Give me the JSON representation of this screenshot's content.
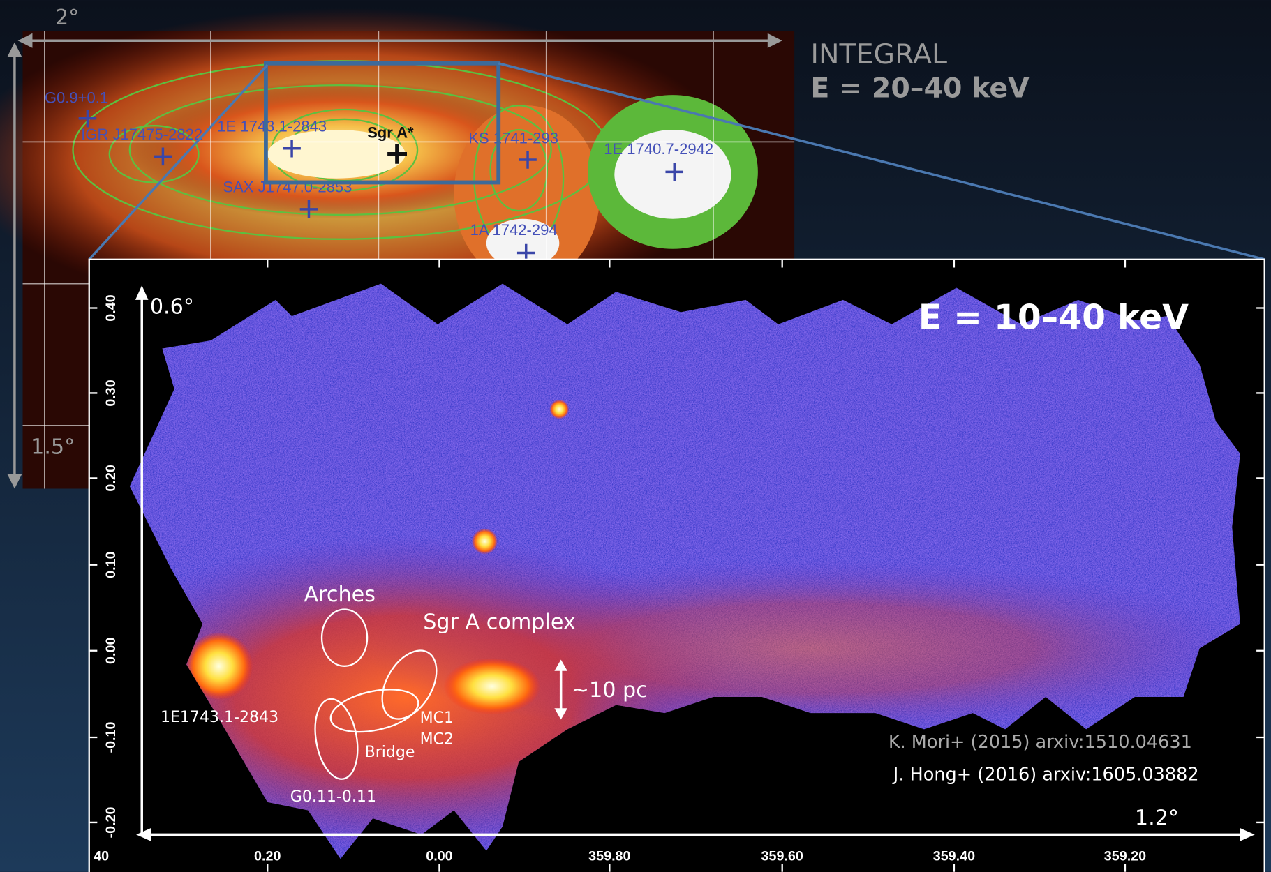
{
  "integral": {
    "scale_width": "2°",
    "scale_height": "1.5°",
    "instrument": "INTEGRAL",
    "energy": "E = 20–40 keV",
    "sources": [
      "G0.9+0.1",
      "IGR J17475-2822",
      "1E 1743.1-2843",
      "Sgr A*",
      "KS 1741-293",
      "1E 1740.7-2942",
      "SAX J1747.0-2853",
      "1A 1742-294"
    ]
  },
  "nustar": {
    "energy": "E = 10–40 keV",
    "scale_height": "0.6°",
    "scale_width": "1.2°",
    "yticks": [
      "0.40",
      "0.30",
      "0.20",
      "0.10",
      "0.00",
      "-0.10",
      "-0.20"
    ],
    "xticks": [
      "40",
      "0.20",
      "0.00",
      "359.80",
      "359.60",
      "359.40",
      "359.20"
    ],
    "labels": {
      "arches": "Arches",
      "sgr_a": "Sgr A complex",
      "size": "~10 pc",
      "source": "1E1743.1-2843",
      "mc1": "MC1",
      "mc2": "MC2",
      "bridge": "Bridge",
      "g011": "G0.11-0.11"
    },
    "credits": [
      "K. Mori+ (2015) arxiv:1510.04631",
      "J. Hong+ (2016) arxiv:1605.03882"
    ]
  }
}
